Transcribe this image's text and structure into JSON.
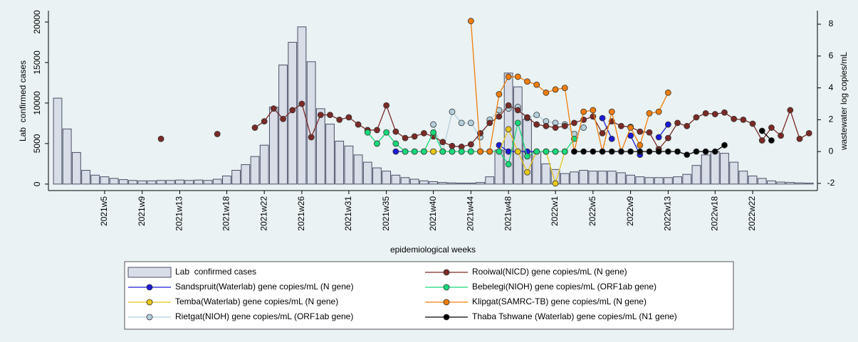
{
  "chart_data": {
    "type": "bar",
    "x_label": "epidemiological weeks",
    "y_label": "Lab  confirmed cases",
    "y2_label": "wastewater log copies/mL",
    "categories": [
      null,
      null,
      null,
      null,
      null,
      "2021w5",
      null,
      null,
      null,
      "2021w9",
      null,
      null,
      null,
      "2021w13",
      null,
      null,
      null,
      null,
      "2021w18",
      null,
      null,
      null,
      "2021w22",
      null,
      null,
      null,
      "2021w26",
      null,
      null,
      null,
      null,
      "2021w31",
      null,
      null,
      null,
      "2021w35",
      null,
      null,
      null,
      null,
      "2021w40",
      null,
      null,
      null,
      "2021w44",
      null,
      null,
      null,
      "2021w48",
      null,
      null,
      null,
      null,
      "2022w1",
      null,
      null,
      null,
      "2022w5",
      null,
      null,
      null,
      "2022w9",
      null,
      null,
      null,
      "2022w13",
      null,
      null,
      null,
      null,
      "2022w18",
      null,
      null,
      null,
      "2022w22",
      null,
      null,
      null,
      null,
      null,
      null
    ],
    "ylim": [
      -800,
      21400
    ],
    "yticks": [
      0,
      5000,
      10000,
      15000,
      20000
    ],
    "y2lim": [
      -2.45,
      8.85
    ],
    "y2ticks": [
      -2,
      0,
      2,
      4,
      6,
      8
    ],
    "series": [
      {
        "name": "Lab  confirmed cases",
        "type": "bar",
        "color": "#d9dde8",
        "values": [
          10600,
          6800,
          3900,
          1700,
          1100,
          900,
          700,
          550,
          450,
          400,
          400,
          450,
          450,
          500,
          450,
          500,
          450,
          600,
          1000,
          1700,
          2400,
          3400,
          4800,
          9500,
          14700,
          17500,
          19400,
          15100,
          9300,
          7400,
          5300,
          4700,
          3600,
          2700,
          2000,
          1600,
          1100,
          800,
          600,
          400,
          300,
          200,
          150,
          120,
          120,
          200,
          900,
          4200,
          13700,
          12000,
          8000,
          4000,
          2500,
          1800,
          1300,
          1500,
          1700,
          1600,
          1600,
          1600,
          1400,
          1100,
          900,
          800,
          800,
          800,
          900,
          1200,
          2300,
          3600,
          4000,
          3800,
          2700,
          1600,
          1000,
          700,
          400,
          250,
          200,
          150,
          120
        ]
      },
      {
        "name": "Sandspruit(Waterlab) gene copies/mL (N gene)",
        "type": "line",
        "axis": "y2",
        "color": "#1a1ad6",
        "values": [
          null,
          null,
          null,
          null,
          null,
          null,
          null,
          null,
          null,
          null,
          null,
          null,
          null,
          null,
          null,
          null,
          null,
          null,
          null,
          null,
          null,
          null,
          null,
          null,
          null,
          null,
          null,
          null,
          null,
          null,
          null,
          null,
          null,
          null,
          null,
          null,
          0,
          0,
          0,
          0,
          0,
          null,
          null,
          null,
          null,
          null,
          null,
          0.4,
          0,
          0,
          0,
          0,
          0,
          0,
          null,
          null,
          null,
          null,
          2.1,
          0.8,
          null,
          1.0,
          -0.2,
          null,
          0.9,
          1.7,
          null,
          null,
          null,
          null,
          null,
          null,
          null,
          null,
          null,
          null,
          null,
          null,
          null,
          null,
          null
        ]
      },
      {
        "name": "Temba(Waterlab) gene copies/mL (N gene)",
        "type": "line",
        "axis": "y2",
        "color": "#e8c81a",
        "values": [
          null,
          null,
          null,
          null,
          null,
          null,
          null,
          null,
          null,
          null,
          null,
          null,
          null,
          null,
          null,
          null,
          null,
          null,
          null,
          null,
          null,
          null,
          null,
          null,
          null,
          null,
          null,
          null,
          null,
          null,
          null,
          null,
          null,
          null,
          null,
          null,
          null,
          null,
          null,
          0,
          0,
          0,
          0,
          0,
          0,
          0,
          0,
          0,
          1.4,
          0,
          -1.3,
          0,
          0,
          -2.0,
          0,
          null,
          null,
          null,
          null,
          null,
          null,
          null,
          null,
          null,
          null,
          null,
          null,
          null,
          null,
          null,
          null,
          null,
          null,
          null,
          null,
          null,
          null,
          null,
          null,
          null,
          null
        ]
      },
      {
        "name": "Rietgat(NIOH) gene copies/mL (ORF1ab gene)",
        "type": "line",
        "axis": "y2",
        "color": "#b4d0dc",
        "values": [
          null,
          null,
          null,
          null,
          null,
          null,
          null,
          null,
          null,
          null,
          null,
          null,
          null,
          null,
          null,
          null,
          null,
          null,
          null,
          null,
          null,
          null,
          null,
          null,
          null,
          null,
          null,
          null,
          null,
          null,
          null,
          null,
          null,
          null,
          null,
          null,
          null,
          null,
          null,
          null,
          1.7,
          0,
          2.5,
          1.8,
          1.8,
          0.9,
          2.0,
          2.6,
          2.7,
          2.8,
          2.1,
          2.3,
          1.9,
          1.8,
          1.7,
          1.1,
          1.5,
          null,
          null,
          null,
          null,
          null,
          null,
          null,
          null,
          null,
          null,
          null,
          null,
          null,
          null,
          null,
          null,
          null,
          null,
          null,
          null,
          null,
          null,
          null,
          null
        ]
      },
      {
        "name": "Rooiwal(NICD) gene copies/mL (N gene)",
        "type": "line",
        "axis": "y2",
        "color": "#7a2a26",
        "values": [
          null,
          null,
          null,
          null,
          null,
          null,
          null,
          null,
          null,
          null,
          null,
          0.8,
          null,
          null,
          null,
          null,
          null,
          1.1,
          null,
          null,
          null,
          1.5,
          1.9,
          2.7,
          2.05,
          2.6,
          3.0,
          0.9,
          2.3,
          2.3,
          2.0,
          2.15,
          1.7,
          1.35,
          1.35,
          2.9,
          1.25,
          0.85,
          0.95,
          1.15,
          0.95,
          0.6,
          0.35,
          0.3,
          0.45,
          1.15,
          1.8,
          2.2,
          2.9,
          2.6,
          2.15,
          1.7,
          1.6,
          1.5,
          1.6,
          1.8,
          2.0,
          2.2,
          1.15,
          1.9,
          1.6,
          1.55,
          1.25,
          1.2,
          0.15,
          0.85,
          1.8,
          1.6,
          2.15,
          2.4,
          2.35,
          2.45,
          2.05,
          2.0,
          1.75,
          0.7,
          1.5,
          1.0,
          2.6,
          0.8,
          1.15
        ]
      },
      {
        "name": "Bebelegi(NIOH) gene copies/mL (ORF1ab gene)",
        "type": "line",
        "axis": "y2",
        "color": "#19d97a",
        "values": [
          null,
          null,
          null,
          null,
          null,
          null,
          null,
          null,
          null,
          null,
          null,
          null,
          null,
          null,
          null,
          null,
          null,
          null,
          null,
          null,
          null,
          null,
          null,
          null,
          null,
          null,
          null,
          null,
          null,
          null,
          null,
          null,
          null,
          1.2,
          0.5,
          1.2,
          0.5,
          0,
          0,
          0,
          1.2,
          0,
          0,
          0,
          0,
          0,
          0,
          0,
          -0.8,
          1.8,
          -0.3,
          0,
          0,
          0,
          0,
          0.8,
          null,
          null,
          null,
          null,
          null,
          null,
          null,
          null,
          null,
          null,
          null,
          null,
          null,
          null,
          null,
          null,
          null,
          null,
          null,
          null,
          null,
          null,
          null,
          null,
          null
        ]
      },
      {
        "name": "Klipgat(SAMRC-TB) gene copies/mL (N gene)",
        "type": "line",
        "axis": "y2",
        "color": "#f07d0a",
        "values": [
          null,
          null,
          null,
          null,
          null,
          null,
          null,
          null,
          null,
          null,
          null,
          null,
          null,
          null,
          null,
          null,
          null,
          null,
          null,
          null,
          null,
          null,
          null,
          null,
          null,
          null,
          null,
          null,
          null,
          null,
          null,
          null,
          null,
          null,
          null,
          null,
          null,
          null,
          null,
          null,
          null,
          null,
          null,
          null,
          8.2,
          0,
          0,
          3.6,
          4.7,
          4.7,
          4.4,
          4.2,
          3.7,
          3.9,
          4.0,
          0,
          2.5,
          2.6,
          0,
          2.5,
          0,
          1.5,
          0.4,
          2.4,
          2.5,
          3.7,
          null,
          null,
          null,
          null,
          null,
          null,
          null,
          null,
          null,
          null,
          null,
          null,
          null,
          null,
          null
        ]
      },
      {
        "name": "Thaba Tshwane (Waterlab) gene copies/mL (N1 gene)",
        "type": "line",
        "axis": "y2",
        "color": "#000000",
        "values": [
          null,
          null,
          null,
          null,
          null,
          null,
          null,
          null,
          null,
          null,
          null,
          null,
          null,
          null,
          null,
          null,
          null,
          null,
          null,
          null,
          null,
          null,
          null,
          null,
          null,
          null,
          null,
          null,
          null,
          null,
          null,
          null,
          null,
          null,
          null,
          null,
          null,
          null,
          null,
          null,
          null,
          null,
          null,
          null,
          null,
          null,
          null,
          null,
          null,
          null,
          null,
          null,
          null,
          null,
          null,
          0,
          0,
          0,
          0,
          0,
          0,
          0,
          0,
          0,
          0,
          0,
          0,
          -0.2,
          0,
          0,
          0,
          0.4,
          null,
          null,
          null,
          1.3,
          0.7,
          null,
          null,
          null,
          null
        ]
      }
    ]
  }
}
